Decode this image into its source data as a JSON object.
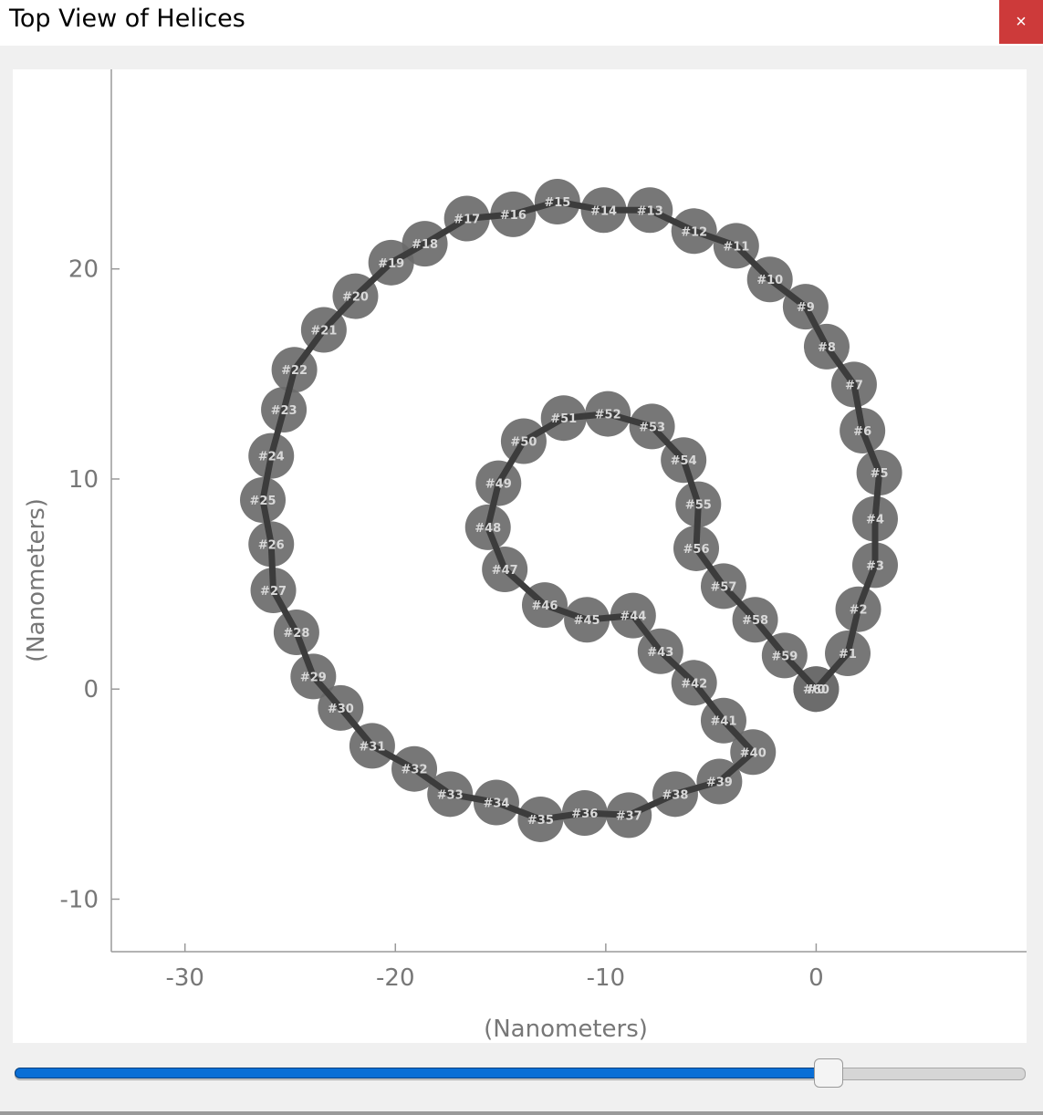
{
  "window": {
    "title": "Top View of Helices",
    "close_glyph": "×"
  },
  "slider": {
    "value_fraction": 0.816
  },
  "colors": {
    "node_fill": "#6b6b6b",
    "path_stroke": "#3c3c3c",
    "node_label": "#d9d9d9",
    "axis": "#9a9a9a",
    "tick_label": "#777777",
    "slider_fill": "#0a6fd6"
  },
  "chart_data": {
    "type": "scatter",
    "xlabel": "(Nanometers)",
    "ylabel": "(Nanometers)",
    "xlim": [
      -33.5,
      10
    ],
    "ylim": [
      -12.5,
      29.5
    ],
    "xticks": [
      -30,
      -20,
      -10,
      0
    ],
    "yticks": [
      -10,
      0,
      10,
      20
    ],
    "grid": false,
    "series": [
      {
        "connected": true,
        "points": [
          {
            "label": "#0",
            "x": 0.0,
            "y": 0.0
          },
          {
            "label": "#1",
            "x": 1.5,
            "y": 1.7
          },
          {
            "label": "#2",
            "x": 2.0,
            "y": 3.8
          },
          {
            "label": "#3",
            "x": 2.8,
            "y": 5.9
          },
          {
            "label": "#4",
            "x": 2.8,
            "y": 8.1
          },
          {
            "label": "#5",
            "x": 3.0,
            "y": 10.3
          },
          {
            "label": "#6",
            "x": 2.2,
            "y": 12.3
          },
          {
            "label": "#7",
            "x": 1.8,
            "y": 14.5
          },
          {
            "label": "#8",
            "x": 0.5,
            "y": 16.3
          },
          {
            "label": "#9",
            "x": -0.5,
            "y": 18.2
          },
          {
            "label": "#10",
            "x": -2.2,
            "y": 19.5
          },
          {
            "label": "#11",
            "x": -3.8,
            "y": 21.1
          },
          {
            "label": "#12",
            "x": -5.8,
            "y": 21.8
          },
          {
            "label": "#13",
            "x": -7.9,
            "y": 22.8
          },
          {
            "label": "#14",
            "x": -10.1,
            "y": 22.8
          },
          {
            "label": "#15",
            "x": -12.3,
            "y": 23.2
          },
          {
            "label": "#16",
            "x": -14.4,
            "y": 22.6
          },
          {
            "label": "#17",
            "x": -16.6,
            "y": 22.4
          },
          {
            "label": "#18",
            "x": -18.6,
            "y": 21.2
          },
          {
            "label": "#19",
            "x": -20.2,
            "y": 20.3
          },
          {
            "label": "#20",
            "x": -21.9,
            "y": 18.7
          },
          {
            "label": "#21",
            "x": -23.4,
            "y": 17.1
          },
          {
            "label": "#22",
            "x": -24.8,
            "y": 15.2
          },
          {
            "label": "#23",
            "x": -25.3,
            "y": 13.3
          },
          {
            "label": "#24",
            "x": -25.9,
            "y": 11.1
          },
          {
            "label": "#25",
            "x": -26.3,
            "y": 9.0
          },
          {
            "label": "#26",
            "x": -25.9,
            "y": 6.9
          },
          {
            "label": "#27",
            "x": -25.8,
            "y": 4.7
          },
          {
            "label": "#28",
            "x": -24.7,
            "y": 2.7
          },
          {
            "label": "#29",
            "x": -23.9,
            "y": 0.6
          },
          {
            "label": "#30",
            "x": -22.6,
            "y": -0.9
          },
          {
            "label": "#31",
            "x": -21.1,
            "y": -2.7
          },
          {
            "label": "#32",
            "x": -19.1,
            "y": -3.8
          },
          {
            "label": "#33",
            "x": -17.4,
            "y": -5.0
          },
          {
            "label": "#34",
            "x": -15.2,
            "y": -5.4
          },
          {
            "label": "#35",
            "x": -13.1,
            "y": -6.2
          },
          {
            "label": "#36",
            "x": -11.0,
            "y": -5.9
          },
          {
            "label": "#37",
            "x": -8.9,
            "y": -6.0
          },
          {
            "label": "#38",
            "x": -6.7,
            "y": -5.0
          },
          {
            "label": "#39",
            "x": -4.6,
            "y": -4.4
          },
          {
            "label": "#40",
            "x": -3.0,
            "y": -3.0
          },
          {
            "label": "#41",
            "x": -4.4,
            "y": -1.5
          },
          {
            "label": "#42",
            "x": -5.8,
            "y": 0.3
          },
          {
            "label": "#43",
            "x": -7.4,
            "y": 1.8
          },
          {
            "label": "#44",
            "x": -8.7,
            "y": 3.5
          },
          {
            "label": "#45",
            "x": -10.9,
            "y": 3.3
          },
          {
            "label": "#46",
            "x": -12.9,
            "y": 4.0
          },
          {
            "label": "#47",
            "x": -14.8,
            "y": 5.7
          },
          {
            "label": "#48",
            "x": -15.6,
            "y": 7.7
          },
          {
            "label": "#49",
            "x": -15.1,
            "y": 9.8
          },
          {
            "label": "#50",
            "x": -13.9,
            "y": 11.8
          },
          {
            "label": "#51",
            "x": -12.0,
            "y": 12.9
          },
          {
            "label": "#52",
            "x": -9.9,
            "y": 13.1
          },
          {
            "label": "#53",
            "x": -7.8,
            "y": 12.5
          },
          {
            "label": "#54",
            "x": -6.3,
            "y": 10.9
          },
          {
            "label": "#55",
            "x": -5.6,
            "y": 8.8
          },
          {
            "label": "#56",
            "x": -5.7,
            "y": 6.7
          },
          {
            "label": "#57",
            "x": -4.4,
            "y": 4.9
          },
          {
            "label": "#58",
            "x": -2.9,
            "y": 3.3
          },
          {
            "label": "#59",
            "x": -1.5,
            "y": 1.6
          },
          {
            "label": "#60",
            "x": 0.0,
            "y": 0.0
          }
        ]
      }
    ]
  }
}
